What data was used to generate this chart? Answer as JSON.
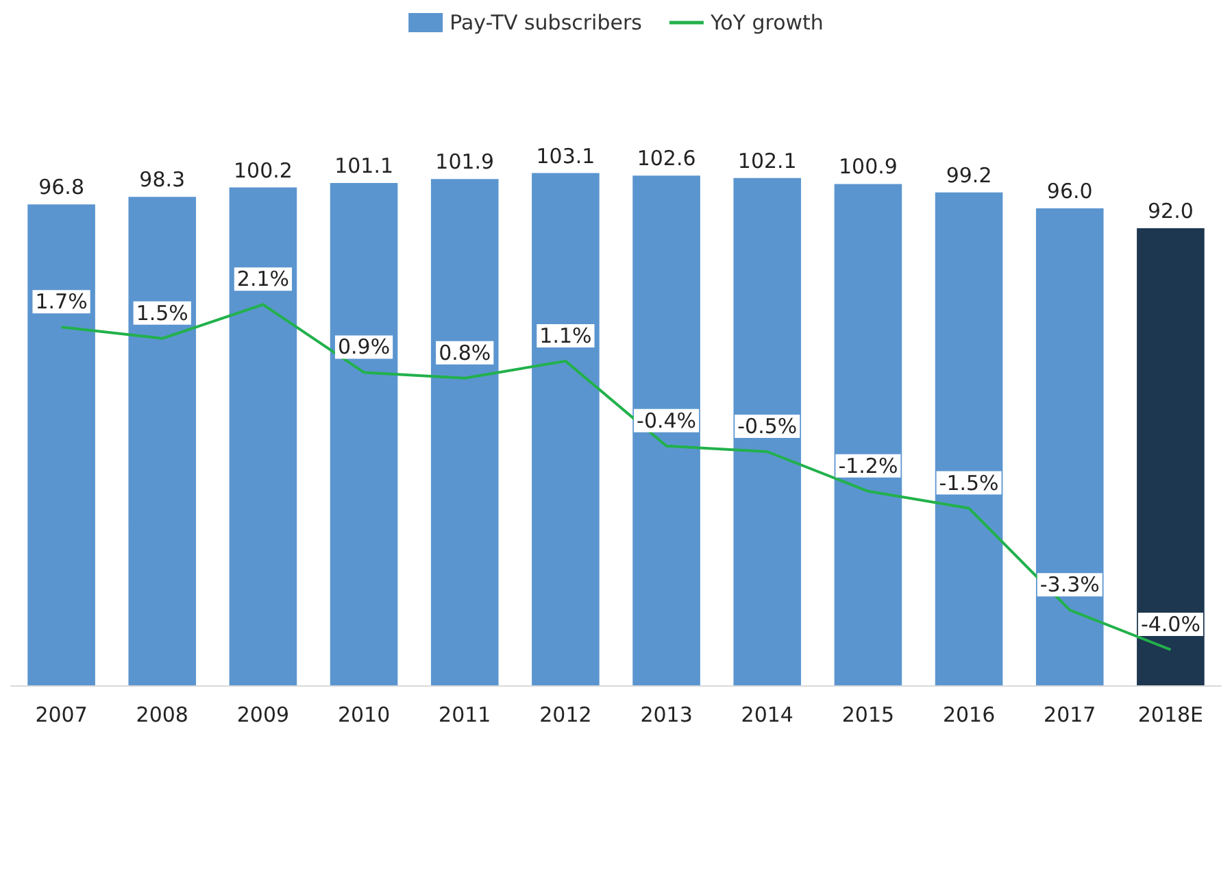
{
  "chart_data": {
    "type": "bar",
    "categories": [
      "2007",
      "2008",
      "2009",
      "2010",
      "2011",
      "2012",
      "2013",
      "2014",
      "2015",
      "2016",
      "2017",
      "2018E"
    ],
    "series": [
      {
        "name": "Pay-TV subscribers",
        "color": "#5b95cf",
        "colors": [
          "#5b95cf",
          "#5b95cf",
          "#5b95cf",
          "#5b95cf",
          "#5b95cf",
          "#5b95cf",
          "#5b95cf",
          "#5b95cf",
          "#5b95cf",
          "#5b95cf",
          "#5b95cf",
          "#1e3750"
        ],
        "values": [
          96.8,
          98.3,
          100.2,
          101.1,
          101.9,
          103.1,
          102.6,
          102.1,
          100.9,
          99.2,
          96.0,
          92.0
        ],
        "value_labels": [
          "96.8",
          "98.3",
          "100.2",
          "101.1",
          "101.9",
          "103.1",
          "102.6",
          "102.1",
          "100.9",
          "99.2",
          "96.0",
          "92.0"
        ]
      },
      {
        "name": "YoY growth",
        "type": "line",
        "axis": "y2",
        "color": "#22b14c",
        "values": [
          1.7,
          1.5,
          2.1,
          0.9,
          0.8,
          1.1,
          -0.4,
          -0.5,
          -1.2,
          -1.5,
          -3.3,
          -4.0
        ],
        "value_labels": [
          "1.7%",
          "1.5%",
          "2.1%",
          "0.9%",
          "0.8%",
          "1.1%",
          "-0.4%",
          "-0.5%",
          "-1.2%",
          "-1.5%",
          "-3.3%",
          "-4.0%"
        ]
      }
    ],
    "tick_labels": "x",
    "grid": false,
    "legend": "top",
    "marker": "none",
    "line_style": "solid"
  }
}
